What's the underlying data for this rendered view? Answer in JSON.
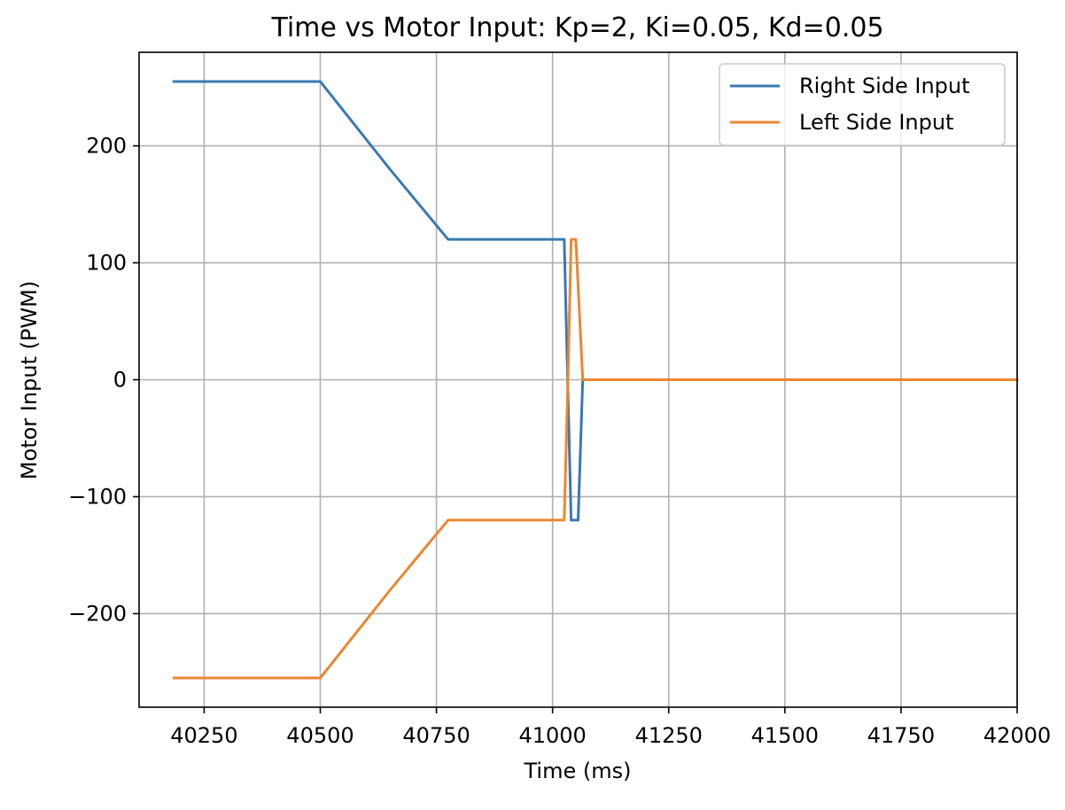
{
  "chart_data": {
    "type": "line",
    "title": "Time vs Motor Input: Kp=2, Ki=0.05, Kd=0.05",
    "xlabel": "Time (ms)",
    "ylabel": "Motor Input (PWM)",
    "xlim": [
      40110,
      42000
    ],
    "ylim": [
      -280,
      280
    ],
    "xticks": [
      40250,
      40500,
      40750,
      41000,
      41250,
      41500,
      41750,
      42000
    ],
    "xtick_labels": [
      "40250",
      "40500",
      "40750",
      "41000",
      "41250",
      "41500",
      "41750",
      "42000"
    ],
    "yticks": [
      -200,
      -100,
      0,
      100,
      200
    ],
    "ytick_labels": [
      "−200",
      "−100",
      "0",
      "100",
      "200"
    ],
    "grid": true,
    "legend_position": "top-right",
    "series": [
      {
        "name": "Right Side Input",
        "color": "#3a78b4",
        "x": [
          40185,
          40500,
          40520,
          40650,
          40775,
          40800,
          41000,
          41025,
          41040,
          41055,
          41065,
          41250,
          41500,
          41750,
          42000
        ],
        "y": [
          255,
          255,
          245,
          180,
          120,
          120,
          120,
          120,
          -120,
          -120,
          0,
          0,
          0,
          0,
          0
        ]
      },
      {
        "name": "Left Side Input",
        "color": "#ec8631",
        "x": [
          40185,
          40500,
          40520,
          40650,
          40775,
          40800,
          41000,
          41025,
          41033,
          41040,
          41050,
          41065,
          41250,
          41500,
          41750,
          42000
        ],
        "y": [
          -255,
          -255,
          -245,
          -180,
          -120,
          -120,
          -120,
          -120,
          0,
          120,
          120,
          0,
          0,
          0,
          0,
          0
        ]
      }
    ]
  }
}
